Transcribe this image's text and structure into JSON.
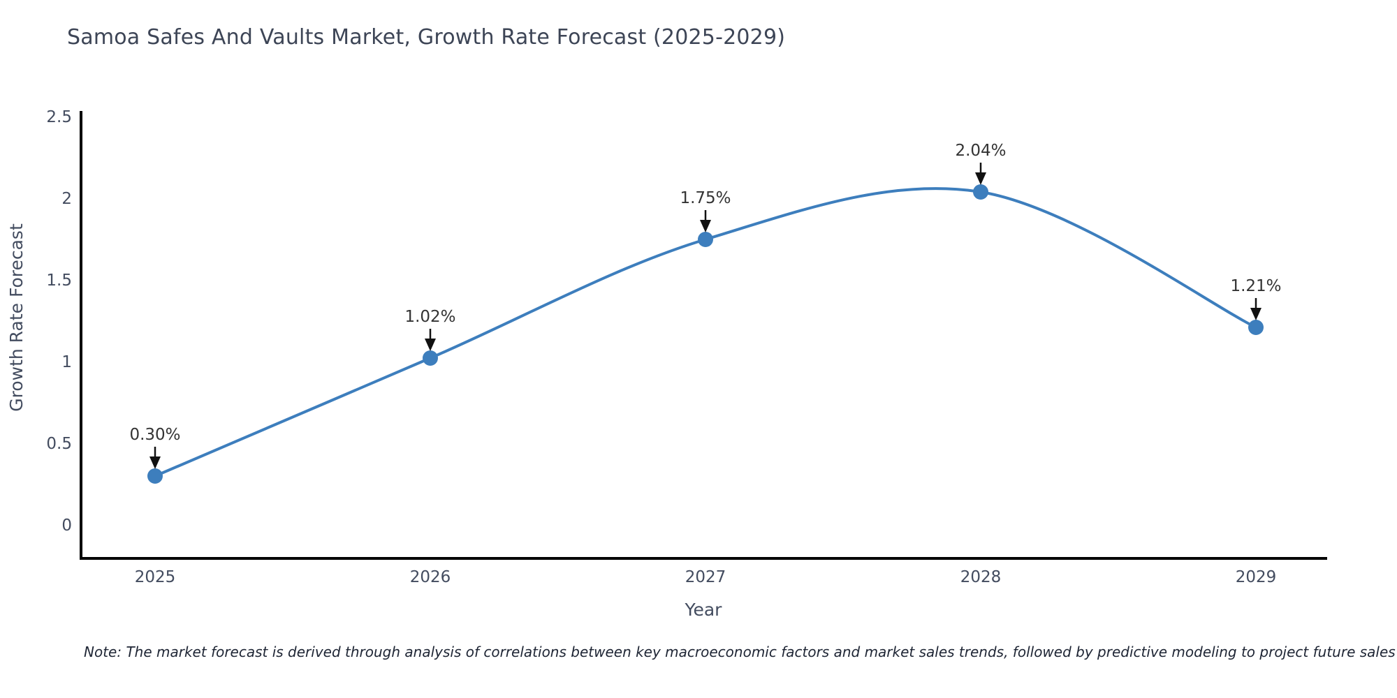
{
  "page": {
    "background_color": "#ffffff"
  },
  "chart_data": {
    "type": "line",
    "title": "Samoa Safes And Vaults Market, Growth Rate Forecast (2025-2029)",
    "xlabel": "Year",
    "ylabel": "Growth Rate Forecast",
    "categories": [
      "2025",
      "2026",
      "2027",
      "2028",
      "2029"
    ],
    "series": [
      {
        "name": "Growth Rate Forecast",
        "values": [
          0.3,
          1.02,
          1.75,
          2.04,
          1.21
        ],
        "point_labels": [
          "0.30%",
          "1.02%",
          "1.75%",
          "2.04%",
          "1.21%"
        ]
      }
    ],
    "yticks": [
      "0",
      "0.5",
      "1",
      "1.5",
      "2",
      "2.5"
    ],
    "ytick_values": [
      0,
      0.5,
      1,
      1.5,
      2,
      2.5
    ],
    "ylim": [
      -0.21,
      2.56
    ],
    "grid": false,
    "legend": "none",
    "line_shape": "spline",
    "line_color": "#3d7ebd",
    "marker_color": "#3d7ebd",
    "axis_line_color": "#000000",
    "tick_label_color": "#434c5f",
    "annotation_text_color": "#333333",
    "annotation_arrow_color": "#111111",
    "note": "Note: The market forecast is derived through analysis of correlations between key macroeconomic factors and market sales trends, followed by predictive modeling to project future sales"
  }
}
